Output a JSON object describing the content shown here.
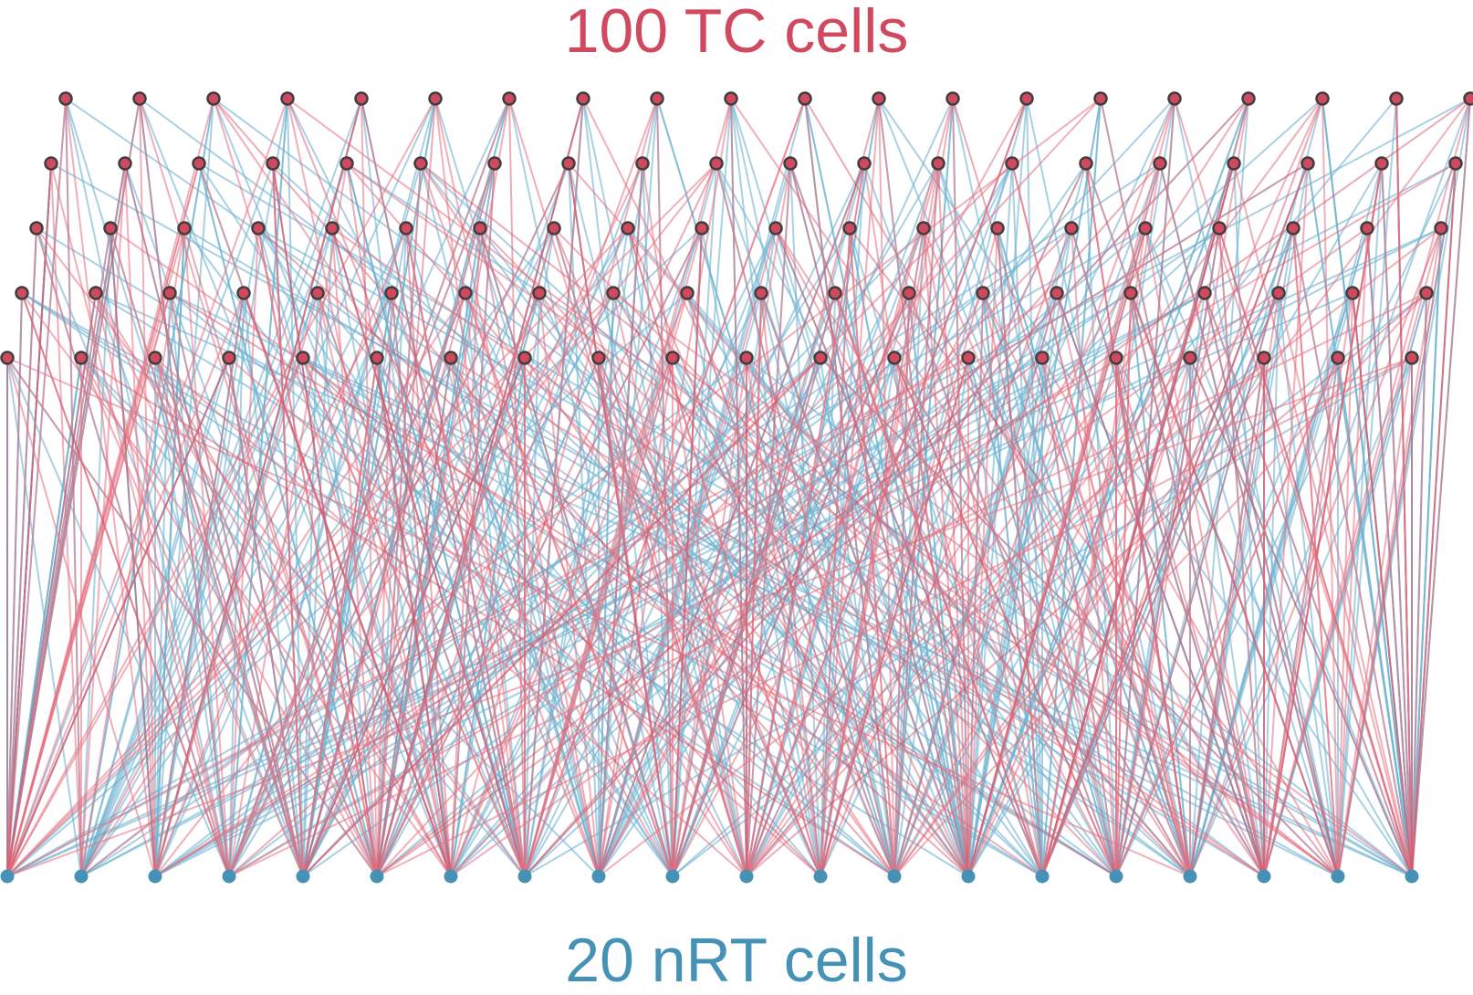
{
  "tc_label": "100 TC cells",
  "nrt_label": "20 nRT cells",
  "network": {
    "tc_count": 100,
    "nrt_count": 20,
    "tc_grid_rows": 5,
    "tc_grid_cols": 20,
    "tc_to_nrt_connections_per_cell": 3,
    "nrt_to_tc_connections_per_cell": 5
  },
  "colors": {
    "tc": "#d0495f",
    "tc_edge": "#e5707f",
    "tc_node_outline": "#3f3f3f",
    "nrt": "#4692b6",
    "nrt_edge": "#6fb3d1",
    "background": "#ffffff"
  }
}
